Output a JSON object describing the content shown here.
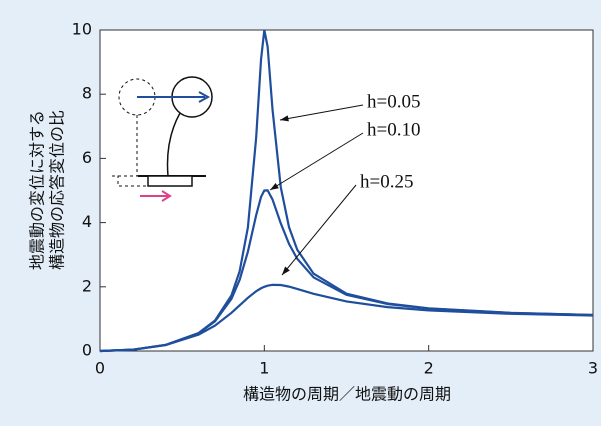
{
  "chart_data": {
    "type": "line",
    "xlabel": "構造物の周期／地震動の周期",
    "ylabel": [
      "地震動の変位に対する",
      "構造物の応答変位の比"
    ],
    "x": [
      0,
      0.2,
      0.4,
      0.6,
      0.7,
      0.8,
      0.85,
      0.9,
      0.95,
      0.98,
      1,
      1.02,
      1.05,
      1.1,
      1.15,
      1.2,
      1.3,
      1.5,
      1.75,
      2,
      2.5,
      3
    ],
    "series": [
      {
        "name": "h=0.05",
        "color": "#1f4e9c",
        "values": [
          0,
          0.0417,
          0.1903,
          0.56,
          0.952,
          1.735,
          2.49,
          3.853,
          6.631,
          9.086,
          10,
          9.483,
          7.514,
          5.104,
          3.862,
          3.157,
          2.407,
          1.787,
          1.48,
          1.33,
          1.189,
          1.124
        ]
      },
      {
        "name": "h=0.10",
        "color": "#1f4e9c",
        "values": [
          0,
          0.0416,
          0.1896,
          0.553,
          0.926,
          1.624,
          2.22,
          3.095,
          4.226,
          4.802,
          5,
          5.003,
          4.718,
          3.978,
          3.339,
          2.873,
          2.292,
          1.75,
          1.464,
          1.322,
          1.185,
          1.122
        ]
      },
      {
        "name": "h=0.25",
        "color": "#1f4e9c",
        "values": [
          0,
          0.0414,
          0.1853,
          0.509,
          0.792,
          1.189,
          1.423,
          1.658,
          1.861,
          1.954,
          2,
          2.034,
          2.061,
          2.055,
          2.006,
          1.935,
          1.783,
          1.543,
          1.367,
          1.265,
          1.158,
          1.106
        ]
      }
    ],
    "xlim": [
      0,
      3
    ],
    "xticks": [
      0,
      1,
      2,
      3
    ],
    "ylim": [
      0,
      10
    ],
    "yticks": [
      0,
      2,
      4,
      6,
      8,
      10
    ]
  }
}
